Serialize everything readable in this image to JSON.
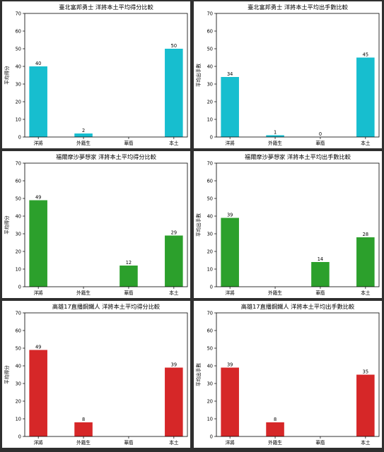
{
  "chart_data": [
    {
      "type": "bar",
      "title": "臺北富邦勇士 洋將本土平均得分比較",
      "ylabel": "平均得分",
      "categories": [
        "洋將",
        "外籍生",
        "華裔",
        "本土"
      ],
      "values": [
        40,
        2,
        0,
        50
      ],
      "labels": [
        "40",
        "2",
        "",
        "50"
      ],
      "ylim": [
        0,
        70
      ],
      "yticks": [
        0,
        10,
        20,
        30,
        40,
        50,
        60,
        70
      ],
      "color": "#17becf"
    },
    {
      "type": "bar",
      "title": "臺北富邦勇士 洋將本土平均出手數比較",
      "ylabel": "平均出手數",
      "categories": [
        "洋將",
        "外籍生",
        "華裔",
        "本土"
      ],
      "values": [
        34,
        1,
        0,
        45
      ],
      "labels": [
        "34",
        "1",
        "0",
        "45"
      ],
      "ylim": [
        0,
        70
      ],
      "yticks": [
        0,
        10,
        20,
        30,
        40,
        50,
        60,
        70
      ],
      "color": "#17becf"
    },
    {
      "type": "bar",
      "title": "福爾摩沙夢想家 洋將本土平均得分比較",
      "ylabel": "平均得分",
      "categories": [
        "洋將",
        "外籍生",
        "華裔",
        "本土"
      ],
      "values": [
        49,
        0,
        12,
        29
      ],
      "labels": [
        "49",
        "",
        "12",
        "29"
      ],
      "ylim": [
        0,
        70
      ],
      "yticks": [
        0,
        10,
        20,
        30,
        40,
        50,
        60,
        70
      ],
      "color": "#2ca02c"
    },
    {
      "type": "bar",
      "title": "福爾摩沙夢想家 洋將本土平均出手數比較",
      "ylabel": "平均出手數",
      "categories": [
        "洋將",
        "外籍生",
        "華裔",
        "本土"
      ],
      "values": [
        39,
        0,
        14,
        28
      ],
      "labels": [
        "39",
        "",
        "14",
        "28"
      ],
      "ylim": [
        0,
        70
      ],
      "yticks": [
        0,
        10,
        20,
        30,
        40,
        50,
        60,
        70
      ],
      "color": "#2ca02c"
    },
    {
      "type": "bar",
      "title": "高雄17直播鋼鐵人 洋將本土平均得分比較",
      "ylabel": "平均得分",
      "categories": [
        "洋將",
        "外籍生",
        "華裔",
        "本土"
      ],
      "values": [
        49,
        8,
        0,
        39
      ],
      "labels": [
        "49",
        "8",
        "",
        "39"
      ],
      "ylim": [
        0,
        70
      ],
      "yticks": [
        0,
        10,
        20,
        30,
        40,
        50,
        60,
        70
      ],
      "color": "#d62728"
    },
    {
      "type": "bar",
      "title": "高雄17直播鋼鐵人 洋將本土平均出手數比較",
      "ylabel": "平均出手數",
      "categories": [
        "洋將",
        "外籍生",
        "華裔",
        "本土"
      ],
      "values": [
        39,
        8,
        0,
        35
      ],
      "labels": [
        "39",
        "8",
        "",
        "35"
      ],
      "ylim": [
        0,
        70
      ],
      "yticks": [
        0,
        10,
        20,
        30,
        40,
        50,
        60,
        70
      ],
      "color": "#d62728"
    }
  ]
}
